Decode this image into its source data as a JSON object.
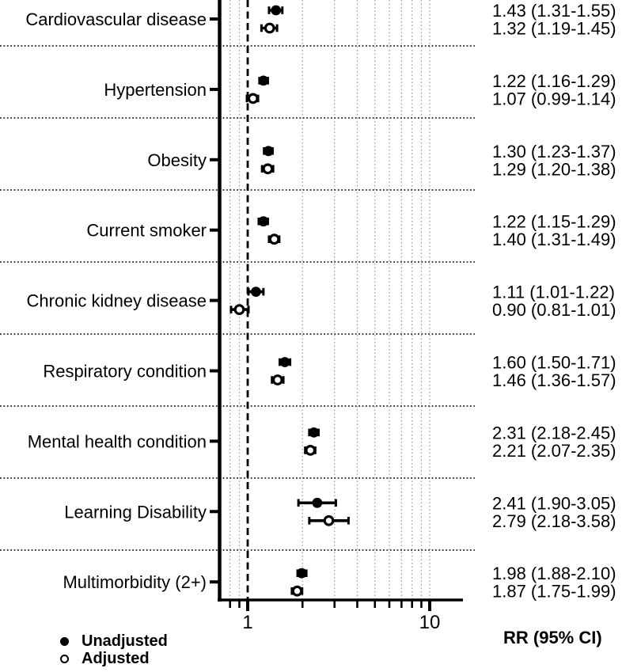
{
  "figure": {
    "axis_label": "RR (95% CI)",
    "legend": [
      {
        "marker": "filled-circle",
        "label": "Unadjusted"
      },
      {
        "marker": "open-circle",
        "label": "Adjusted"
      }
    ]
  },
  "chart_data": {
    "type": "scatter",
    "subtype": "forest-plot-dot-and-ci",
    "x_axis": {
      "scale": "log10",
      "labeled_ticks": [
        1,
        10
      ],
      "tick_labels": [
        "1",
        "10"
      ],
      "minor_ticks": [
        0.8,
        0.9,
        2,
        3,
        4,
        5,
        6,
        7,
        8,
        9
      ],
      "gridline_values": [
        0.8,
        0.9,
        2,
        3,
        4,
        5,
        6,
        7,
        8,
        9,
        10
      ],
      "reference_line": 1.0,
      "range": [
        0.7,
        15.5
      ],
      "grid": "on"
    },
    "value_column_header": "RR (95% CI)",
    "series_names": [
      "Unadjusted",
      "Adjusted"
    ],
    "legend_position": "bottom-left",
    "rows": [
      {
        "category": "Cardiovascular disease",
        "unadjusted": {
          "rr": 1.43,
          "ci_low": 1.31,
          "ci_high": 1.55,
          "label": "1.43 (1.31-1.55)"
        },
        "adjusted": {
          "rr": 1.32,
          "ci_low": 1.19,
          "ci_high": 1.45,
          "label": "1.32 (1.19-1.45)"
        }
      },
      {
        "category": "Hypertension",
        "unadjusted": {
          "rr": 1.22,
          "ci_low": 1.16,
          "ci_high": 1.29,
          "label": "1.22 (1.16-1.29)"
        },
        "adjusted": {
          "rr": 1.07,
          "ci_low": 0.99,
          "ci_high": 1.14,
          "label": "1.07 (0.99-1.14)"
        }
      },
      {
        "category": "Obesity",
        "unadjusted": {
          "rr": 1.3,
          "ci_low": 1.23,
          "ci_high": 1.37,
          "label": "1.30 (1.23-1.37)"
        },
        "adjusted": {
          "rr": 1.29,
          "ci_low": 1.2,
          "ci_high": 1.38,
          "label": "1.29 (1.20-1.38)"
        }
      },
      {
        "category": "Current smoker",
        "unadjusted": {
          "rr": 1.22,
          "ci_low": 1.15,
          "ci_high": 1.29,
          "label": "1.22 (1.15-1.29)"
        },
        "adjusted": {
          "rr": 1.4,
          "ci_low": 1.31,
          "ci_high": 1.49,
          "label": "1.40 (1.31-1.49)"
        }
      },
      {
        "category": "Chronic kidney disease",
        "unadjusted": {
          "rr": 1.11,
          "ci_low": 1.01,
          "ci_high": 1.22,
          "label": "1.11 (1.01-1.22)"
        },
        "adjusted": {
          "rr": 0.9,
          "ci_low": 0.81,
          "ci_high": 1.01,
          "label": "0.90 (0.81-1.01)"
        }
      },
      {
        "category": "Respiratory condition",
        "unadjusted": {
          "rr": 1.6,
          "ci_low": 1.5,
          "ci_high": 1.71,
          "label": "1.60 (1.50-1.71)"
        },
        "adjusted": {
          "rr": 1.46,
          "ci_low": 1.36,
          "ci_high": 1.57,
          "label": "1.46 (1.36-1.57)"
        }
      },
      {
        "category": "Mental health condition",
        "unadjusted": {
          "rr": 2.31,
          "ci_low": 2.18,
          "ci_high": 2.45,
          "label": "2.31 (2.18-2.45)"
        },
        "adjusted": {
          "rr": 2.21,
          "ci_low": 2.07,
          "ci_high": 2.35,
          "label": "2.21 (2.07-2.35)"
        }
      },
      {
        "category": "Learning Disability",
        "unadjusted": {
          "rr": 2.41,
          "ci_low": 1.9,
          "ci_high": 3.05,
          "label": "2.41 (1.90-3.05)"
        },
        "adjusted": {
          "rr": 2.79,
          "ci_low": 2.18,
          "ci_high": 3.58,
          "label": "2.79 (2.18-3.58)"
        }
      },
      {
        "category": "Multimorbidity (2+)",
        "unadjusted": {
          "rr": 1.98,
          "ci_low": 1.88,
          "ci_high": 2.1,
          "label": "1.98 (1.88-2.10)"
        },
        "adjusted": {
          "rr": 1.87,
          "ci_low": 1.75,
          "ci_high": 1.99,
          "label": "1.87 (1.75-1.99)"
        }
      }
    ],
    "colors": {
      "ink": "#000000",
      "gridline": "#9e9e9e",
      "background": "#ffffff"
    }
  }
}
